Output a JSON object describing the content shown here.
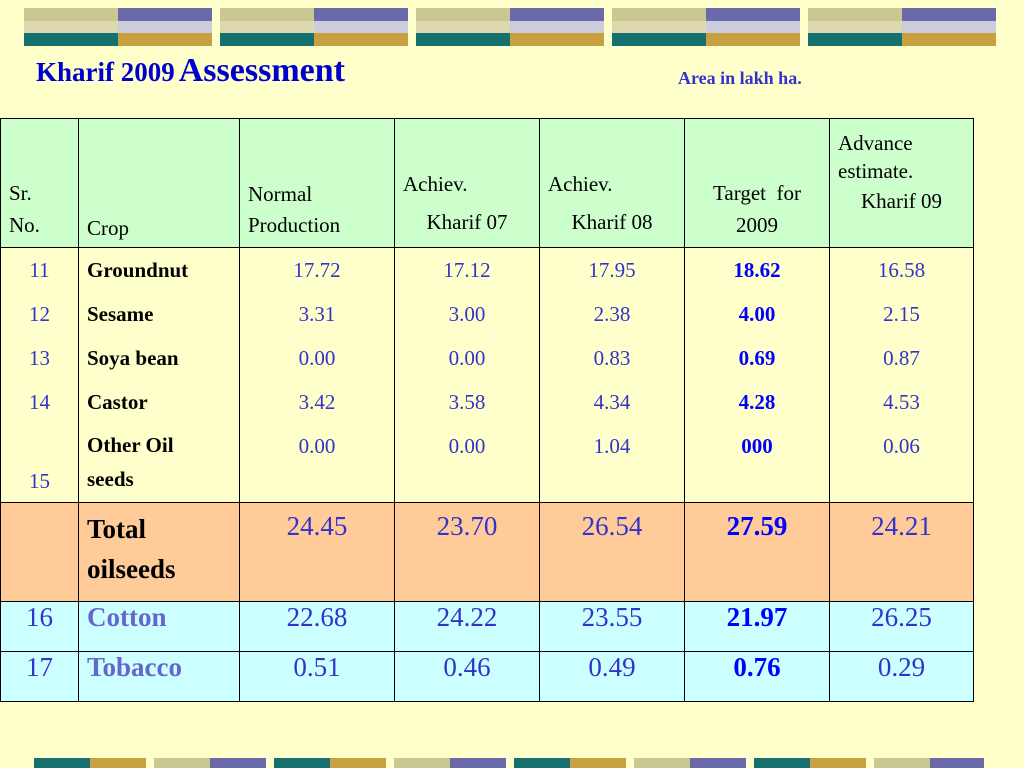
{
  "title": {
    "part1": "Kharif  2009",
    "part2": "Assessment"
  },
  "unit_note": "Area in lakh ha.",
  "colors": {
    "title": "#0000cc",
    "header_bg": "#ccffcc",
    "total_bg": "#ffcc99",
    "extra_bg": "#ccffff",
    "target": "#0000ff",
    "page_bg": "#ffffcc"
  },
  "headers": {
    "sr": [
      "Sr.",
      "No."
    ],
    "crop": "Crop",
    "normal": [
      "Normal",
      "Production"
    ],
    "ach07": [
      "Achiev.",
      "Kharif 07"
    ],
    "ach08": [
      "Achiev.",
      "Kharif 08"
    ],
    "target": [
      "Target  for",
      "2009"
    ],
    "advance": [
      "Advance",
      "estimate.",
      "Kharif 09"
    ]
  },
  "rows": [
    {
      "sr": "11",
      "crop": "Groundnut",
      "normal": "17.72",
      "ach07": "17.12",
      "ach08": "17.95",
      "target": "18.62",
      "advance": "16.58"
    },
    {
      "sr": "12",
      "crop": "Sesame",
      "normal": "3.31",
      "ach07": "3.00",
      "ach08": "2.38",
      "target": "4.00",
      "advance": "2.15"
    },
    {
      "sr": "13",
      "crop": "Soya bean",
      "normal": "0.00",
      "ach07": "0.00",
      "ach08": "0.83",
      "target": "0.69",
      "advance": "0.87"
    },
    {
      "sr": "14",
      "crop": "Castor",
      "normal": "3.42",
      "ach07": "3.58",
      "ach08": "4.34",
      "target": "4.28",
      "advance": "4.53"
    },
    {
      "sr": "15",
      "crop_line1": "Other Oil",
      "crop_line2": "seeds",
      "normal": "0.00",
      "ach07": "0.00",
      "ach08": "1.04",
      "target": "000",
      "advance": "0.06"
    }
  ],
  "total": {
    "crop_line1": "Total",
    "crop_line2": "oilseeds",
    "normal": "24.45",
    "ach07": "23.70",
    "ach08": "26.54",
    "target": "27.59",
    "advance": "24.21"
  },
  "extra_rows": [
    {
      "sr": "16",
      "crop": "Cotton",
      "normal": "22.68",
      "ach07": "24.22",
      "ach08": "23.55",
      "target": "21.97",
      "advance": "26.25"
    },
    {
      "sr": "17",
      "crop": "Tobacco",
      "normal": "0.51",
      "ach07": "0.46",
      "ach08": "0.49",
      "target": "0.76",
      "advance": "0.29"
    }
  ]
}
